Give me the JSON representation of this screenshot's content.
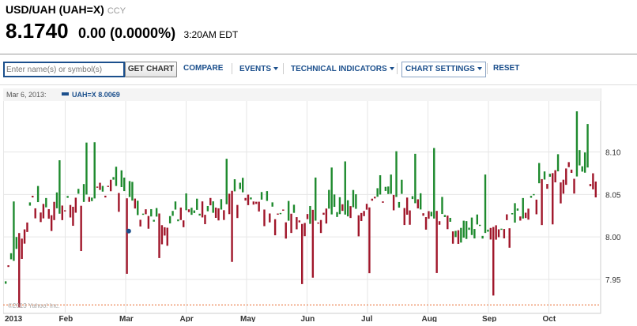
{
  "header": {
    "title": "USD/UAH (UAH=X)",
    "exchange": "CCY",
    "price": "8.1740",
    "change": "0.00 (0.0000%)",
    "time": "3:20AM EDT"
  },
  "toolbar": {
    "search_placeholder": "Enter name(s) or symbol(s)",
    "get_chart": "GET CHART",
    "compare": "COMPARE",
    "events": "EVENTS",
    "technical_indicators": "TECHNICAL INDICATORS",
    "chart_settings": "CHART SETTINGS",
    "reset": "RESET"
  },
  "chart": {
    "info_date": "Mar 6, 2013:",
    "info_series": "UAH=X 8.0069",
    "watermark": "©2013 Yahoo! Inc.",
    "up_color": "#1e8a2e",
    "down_color": "#a0162a"
  },
  "chart_data": {
    "type": "candlestick",
    "symbol": "UAH=X",
    "ylim": [
      7.91,
      8.16
    ],
    "yticks": [
      "8.10",
      "8.05",
      "8.00",
      "7.95"
    ],
    "xticks": [
      "2013",
      "Feb",
      "Mar",
      "Apr",
      "May",
      "Jun",
      "Jul",
      "Aug",
      "Sep",
      "Oct"
    ],
    "reference_line": 7.92,
    "highlight": {
      "date": "Mar 6, 2013",
      "value": 8.0069
    }
  }
}
